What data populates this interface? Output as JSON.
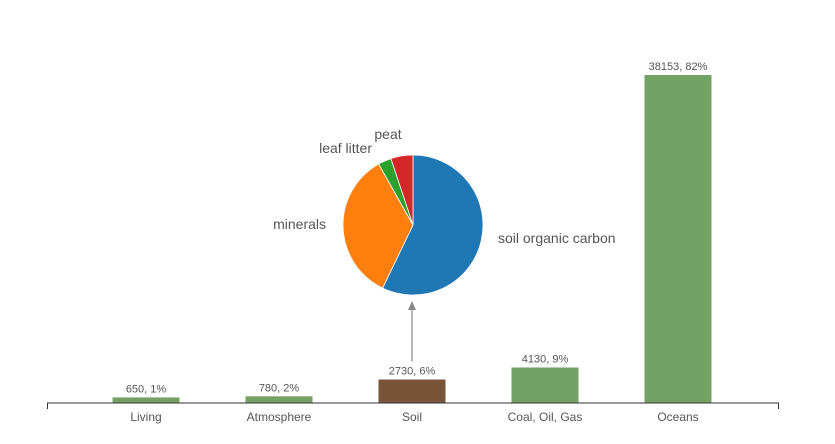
{
  "chart_data": [
    {
      "type": "bar",
      "categories": [
        "Living",
        "Atmosphere",
        "Soil",
        "Coal, Oil, Gas",
        "Oceans"
      ],
      "values": [
        650,
        780,
        2730,
        4130,
        38153
      ],
      "percents": [
        1,
        2,
        6,
        9,
        82
      ],
      "data_labels": [
        "650, 1%",
        "780, 2%",
        "2730, 6%",
        "4130, 9%",
        "38153, 82%"
      ],
      "highlight_category": "Soil",
      "colors": {
        "default": "#74a265",
        "highlight": "#7a5438",
        "axis": "#333333",
        "text": "#555555"
      },
      "ylim": [
        0,
        40000
      ],
      "grid": false
    },
    {
      "type": "pie",
      "linked_to": "Soil",
      "labels": [
        "soil organic carbon",
        "minerals",
        "leaf litter",
        "peat"
      ],
      "values": [
        56,
        34,
        3,
        5
      ],
      "colors": [
        "#1f77b4",
        "#ff7f0e",
        "#2ca02c",
        "#d62728"
      ]
    }
  ]
}
